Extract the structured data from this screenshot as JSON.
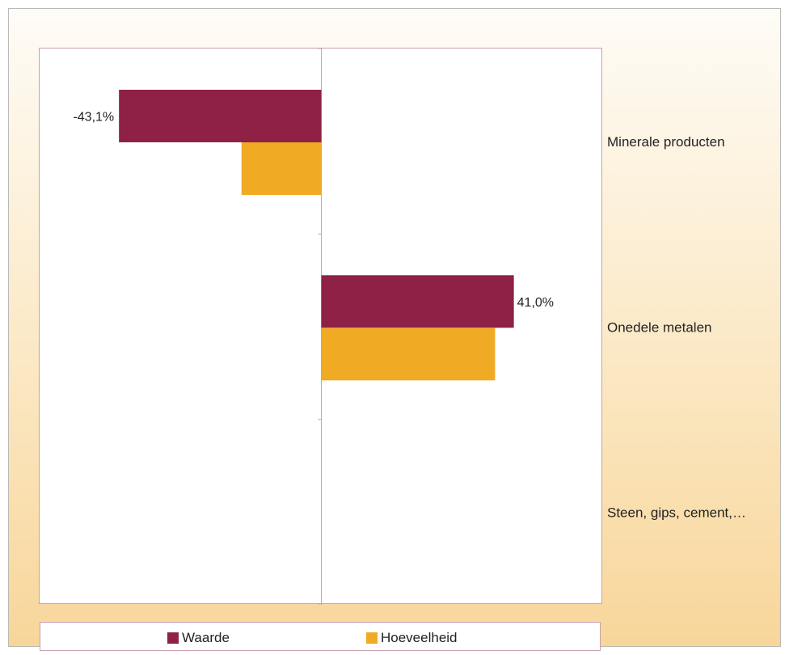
{
  "chart_data": {
    "type": "bar",
    "orientation": "horizontal",
    "categories": [
      "Minerale producten",
      "Onedele metalen",
      "Steen, gips, cement,…"
    ],
    "series": [
      {
        "name": "Waarde",
        "values": [
          -43.1,
          41.0,
          null
        ],
        "labels": [
          "-43,1%",
          "41,0%",
          ""
        ],
        "color": "#8e2145"
      },
      {
        "name": "Hoeveelheid",
        "values": [
          -17.0,
          37.0,
          null
        ],
        "labels": [
          "",
          "",
          ""
        ],
        "color": "#f0aa24"
      }
    ],
    "xlim": [
      -60,
      60
    ],
    "grid": false,
    "legend_position": "bottom"
  }
}
